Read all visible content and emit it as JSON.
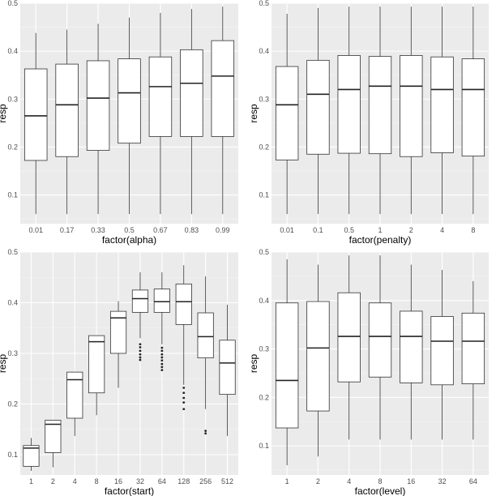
{
  "chart_data": [
    {
      "type": "boxplot",
      "xlabel": "factor(alpha)",
      "ylabel": "resp",
      "ylim": [
        0.04,
        0.5
      ],
      "yticks": [
        0.1,
        0.2,
        0.3,
        0.4,
        0.5
      ],
      "categories": [
        "0.01",
        "0.17",
        "0.33",
        "0.5",
        "0.67",
        "0.83",
        "0.99"
      ],
      "boxes": [
        {
          "whisker_low": 0.06,
          "q1": 0.172,
          "median": 0.265,
          "q3": 0.363,
          "whisker_high": 0.438,
          "outliers": []
        },
        {
          "whisker_low": 0.06,
          "q1": 0.18,
          "median": 0.288,
          "q3": 0.373,
          "whisker_high": 0.445,
          "outliers": []
        },
        {
          "whisker_low": 0.06,
          "q1": 0.193,
          "median": 0.302,
          "q3": 0.38,
          "whisker_high": 0.457,
          "outliers": []
        },
        {
          "whisker_low": 0.06,
          "q1": 0.208,
          "median": 0.313,
          "q3": 0.384,
          "whisker_high": 0.47,
          "outliers": []
        },
        {
          "whisker_low": 0.06,
          "q1": 0.222,
          "median": 0.326,
          "q3": 0.388,
          "whisker_high": 0.48,
          "outliers": []
        },
        {
          "whisker_low": 0.06,
          "q1": 0.222,
          "median": 0.333,
          "q3": 0.403,
          "whisker_high": 0.488,
          "outliers": []
        },
        {
          "whisker_low": 0.06,
          "q1": 0.222,
          "median": 0.348,
          "q3": 0.422,
          "whisker_high": 0.493,
          "outliers": []
        }
      ]
    },
    {
      "type": "boxplot",
      "xlabel": "factor(penalty)",
      "ylabel": "resp",
      "ylim": [
        0.04,
        0.5
      ],
      "yticks": [
        0.1,
        0.2,
        0.3,
        0.4,
        0.5
      ],
      "categories": [
        "0.01",
        "0.1",
        "0.5",
        "1",
        "2",
        "4",
        "8"
      ],
      "boxes": [
        {
          "whisker_low": 0.06,
          "q1": 0.173,
          "median": 0.288,
          "q3": 0.368,
          "whisker_high": 0.478,
          "outliers": []
        },
        {
          "whisker_low": 0.06,
          "q1": 0.185,
          "median": 0.31,
          "q3": 0.381,
          "whisker_high": 0.49,
          "outliers": []
        },
        {
          "whisker_low": 0.06,
          "q1": 0.187,
          "median": 0.32,
          "q3": 0.391,
          "whisker_high": 0.493,
          "outliers": []
        },
        {
          "whisker_low": 0.06,
          "q1": 0.186,
          "median": 0.327,
          "q3": 0.389,
          "whisker_high": 0.493,
          "outliers": []
        },
        {
          "whisker_low": 0.06,
          "q1": 0.18,
          "median": 0.327,
          "q3": 0.391,
          "whisker_high": 0.493,
          "outliers": []
        },
        {
          "whisker_low": 0.06,
          "q1": 0.188,
          "median": 0.32,
          "q3": 0.388,
          "whisker_high": 0.493,
          "outliers": []
        },
        {
          "whisker_low": 0.06,
          "q1": 0.181,
          "median": 0.32,
          "q3": 0.384,
          "whisker_high": 0.493,
          "outliers": []
        }
      ]
    },
    {
      "type": "boxplot",
      "xlabel": "factor(start)",
      "ylabel": "resp",
      "ylim": [
        0.06,
        0.5
      ],
      "yticks": [
        0.1,
        0.2,
        0.3,
        0.4,
        0.5
      ],
      "categories": [
        "1",
        "2",
        "4",
        "8",
        "16",
        "32",
        "64",
        "128",
        "256",
        "512"
      ],
      "boxes": [
        {
          "whisker_low": 0.068,
          "q1": 0.077,
          "median": 0.113,
          "q3": 0.118,
          "whisker_high": 0.133,
          "outliers": []
        },
        {
          "whisker_low": 0.075,
          "q1": 0.104,
          "median": 0.16,
          "q3": 0.168,
          "whisker_high": 0.168,
          "outliers": []
        },
        {
          "whisker_low": 0.137,
          "q1": 0.172,
          "median": 0.248,
          "q3": 0.263,
          "whisker_high": 0.263,
          "outliers": []
        },
        {
          "whisker_low": 0.178,
          "q1": 0.222,
          "median": 0.323,
          "q3": 0.335,
          "whisker_high": 0.335,
          "outliers": []
        },
        {
          "whisker_low": 0.232,
          "q1": 0.3,
          "median": 0.37,
          "q3": 0.383,
          "whisker_high": 0.403,
          "outliers": []
        },
        {
          "whisker_low": 0.33,
          "q1": 0.381,
          "median": 0.408,
          "q3": 0.425,
          "whisker_high": 0.46,
          "outliers": [
            0.287,
            0.292,
            0.298,
            0.305,
            0.312,
            0.318
          ]
        },
        {
          "whisker_low": 0.318,
          "q1": 0.381,
          "median": 0.402,
          "q3": 0.427,
          "whisker_high": 0.46,
          "outliers": [
            0.267,
            0.273,
            0.279,
            0.286,
            0.292,
            0.298,
            0.305,
            0.311
          ]
        },
        {
          "whisker_low": 0.238,
          "q1": 0.357,
          "median": 0.402,
          "q3": 0.437,
          "whisker_high": 0.474,
          "outliers": [
            0.19,
            0.203,
            0.212,
            0.222,
            0.232
          ]
        },
        {
          "whisker_low": 0.19,
          "q1": 0.291,
          "median": 0.333,
          "q3": 0.38,
          "whisker_high": 0.452,
          "outliers": [
            0.142,
            0.147
          ]
        },
        {
          "whisker_low": 0.137,
          "q1": 0.219,
          "median": 0.281,
          "q3": 0.326,
          "whisker_high": 0.396,
          "outliers": []
        }
      ]
    },
    {
      "type": "boxplot",
      "xlabel": "factor(level)",
      "ylabel": "resp",
      "ylim": [
        0.04,
        0.5
      ],
      "yticks": [
        0.1,
        0.2,
        0.3,
        0.4,
        0.5
      ],
      "categories": [
        "1",
        "2",
        "4",
        "8",
        "16",
        "32",
        "64"
      ],
      "boxes": [
        {
          "whisker_low": 0.06,
          "q1": 0.137,
          "median": 0.235,
          "q3": 0.395,
          "whisker_high": 0.485,
          "outliers": []
        },
        {
          "whisker_low": 0.078,
          "q1": 0.172,
          "median": 0.302,
          "q3": 0.398,
          "whisker_high": 0.474,
          "outliers": []
        },
        {
          "whisker_low": 0.113,
          "q1": 0.232,
          "median": 0.326,
          "q3": 0.416,
          "whisker_high": 0.493,
          "outliers": []
        },
        {
          "whisker_low": 0.113,
          "q1": 0.242,
          "median": 0.326,
          "q3": 0.395,
          "whisker_high": 0.493,
          "outliers": []
        },
        {
          "whisker_low": 0.113,
          "q1": 0.23,
          "median": 0.326,
          "q3": 0.378,
          "whisker_high": 0.474,
          "outliers": []
        },
        {
          "whisker_low": 0.113,
          "q1": 0.226,
          "median": 0.316,
          "q3": 0.367,
          "whisker_high": 0.463,
          "outliers": []
        },
        {
          "whisker_low": 0.113,
          "q1": 0.228,
          "median": 0.316,
          "q3": 0.374,
          "whisker_high": 0.44,
          "outliers": []
        }
      ]
    }
  ],
  "colors": {
    "panel_background": "#ebebeb",
    "grid_major": "#ffffff",
    "grid_minor": "#f5f5f5",
    "box_fill": "#ffffff",
    "box_line": "#333333",
    "tick_text": "#4d4d4d"
  }
}
